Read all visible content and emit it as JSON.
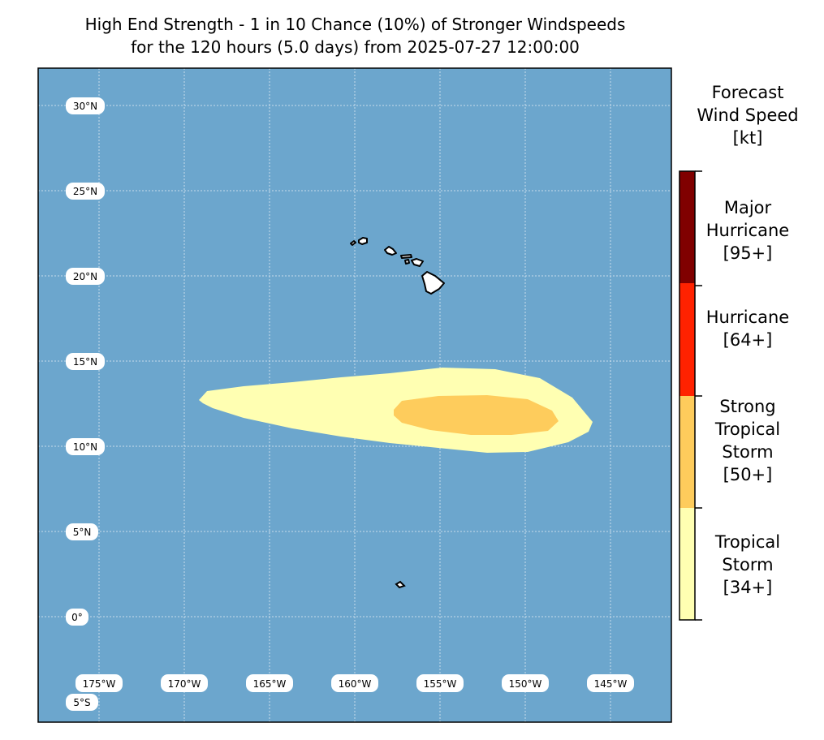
{
  "title": {
    "line1": "High End Strength - 1 in 10 Chance (10%) of Stronger Windspeeds",
    "line2": "for the 120 hours (5.0 days) from 2025-07-27 12:00:00"
  },
  "map": {
    "ocean_color": "#6ca6cd",
    "land_color": "#ffffff",
    "lat_labels": [
      "30°N",
      "25°N",
      "20°N",
      "15°N",
      "10°N",
      "5°N",
      "0°",
      "5°S"
    ],
    "lon_labels": [
      "175°W",
      "170°W",
      "165°W",
      "160°W",
      "155°W",
      "150°W",
      "145°W"
    ],
    "swaths": [
      {
        "name": "tropical-storm-swath",
        "color": "#ffffb2"
      },
      {
        "name": "strong-tropical-storm-swath",
        "color": "#fecc5c"
      }
    ]
  },
  "colorbar": {
    "title_lines": [
      "Forecast",
      "Wind Speed",
      "[kt]"
    ],
    "categories": [
      {
        "lines": [
          "Major",
          "Hurricane",
          "[95+]"
        ],
        "color": "#800000"
      },
      {
        "lines": [
          "Hurricane",
          "[64+]"
        ],
        "color": "#ff2200"
      },
      {
        "lines": [
          "Strong",
          "Tropical",
          "Storm",
          "[50+]"
        ],
        "color": "#fecc5c"
      },
      {
        "lines": [
          "Tropical",
          "Storm",
          "[34+]"
        ],
        "color": "#ffffb2"
      }
    ]
  }
}
